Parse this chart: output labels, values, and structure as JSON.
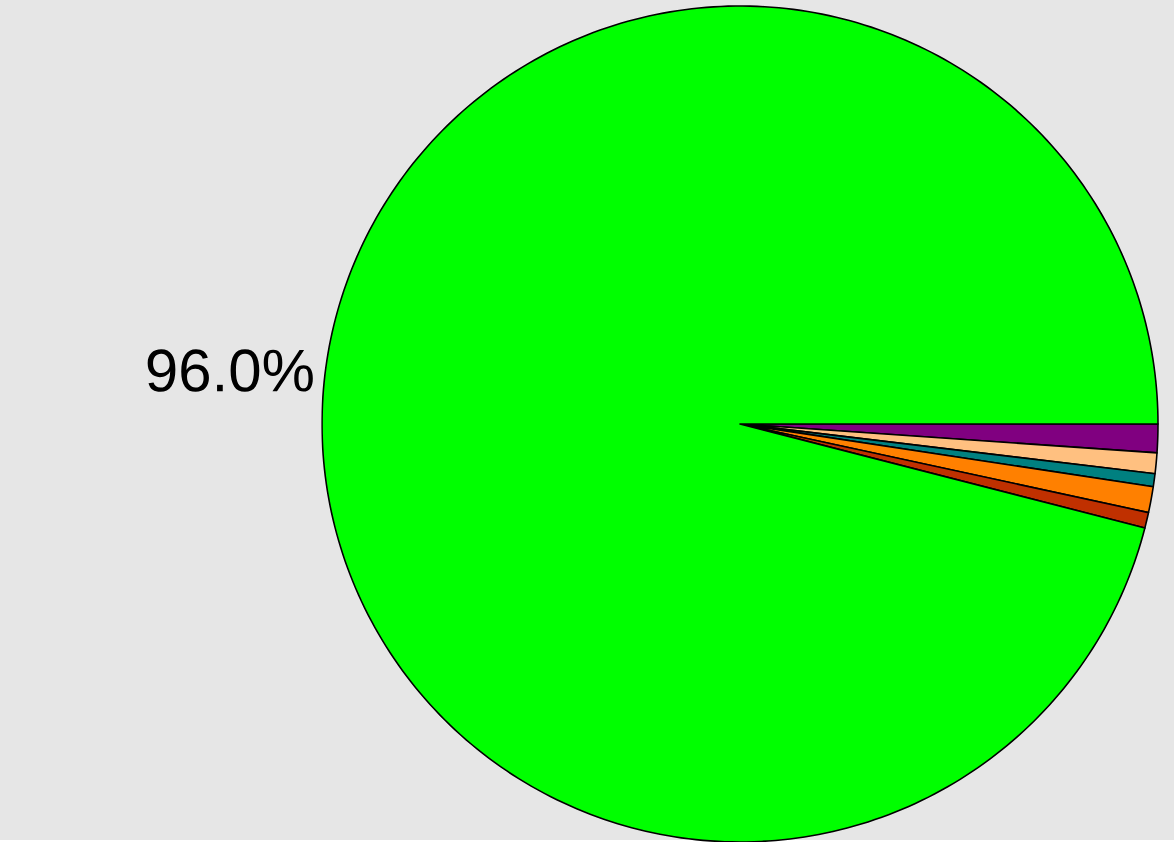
{
  "chart_data": {
    "type": "pie",
    "categories": [
      null,
      null,
      null,
      null,
      null,
      null
    ],
    "values": [
      1.1,
      0.8,
      0.5,
      1.0,
      0.6,
      96.0
    ],
    "colors": [
      "#800080",
      "#ffc080",
      "#008080",
      "#ff8000",
      "#c03000",
      "#00ff00"
    ],
    "value_labels": [
      null,
      null,
      null,
      null,
      null,
      "96.0%"
    ]
  }
}
